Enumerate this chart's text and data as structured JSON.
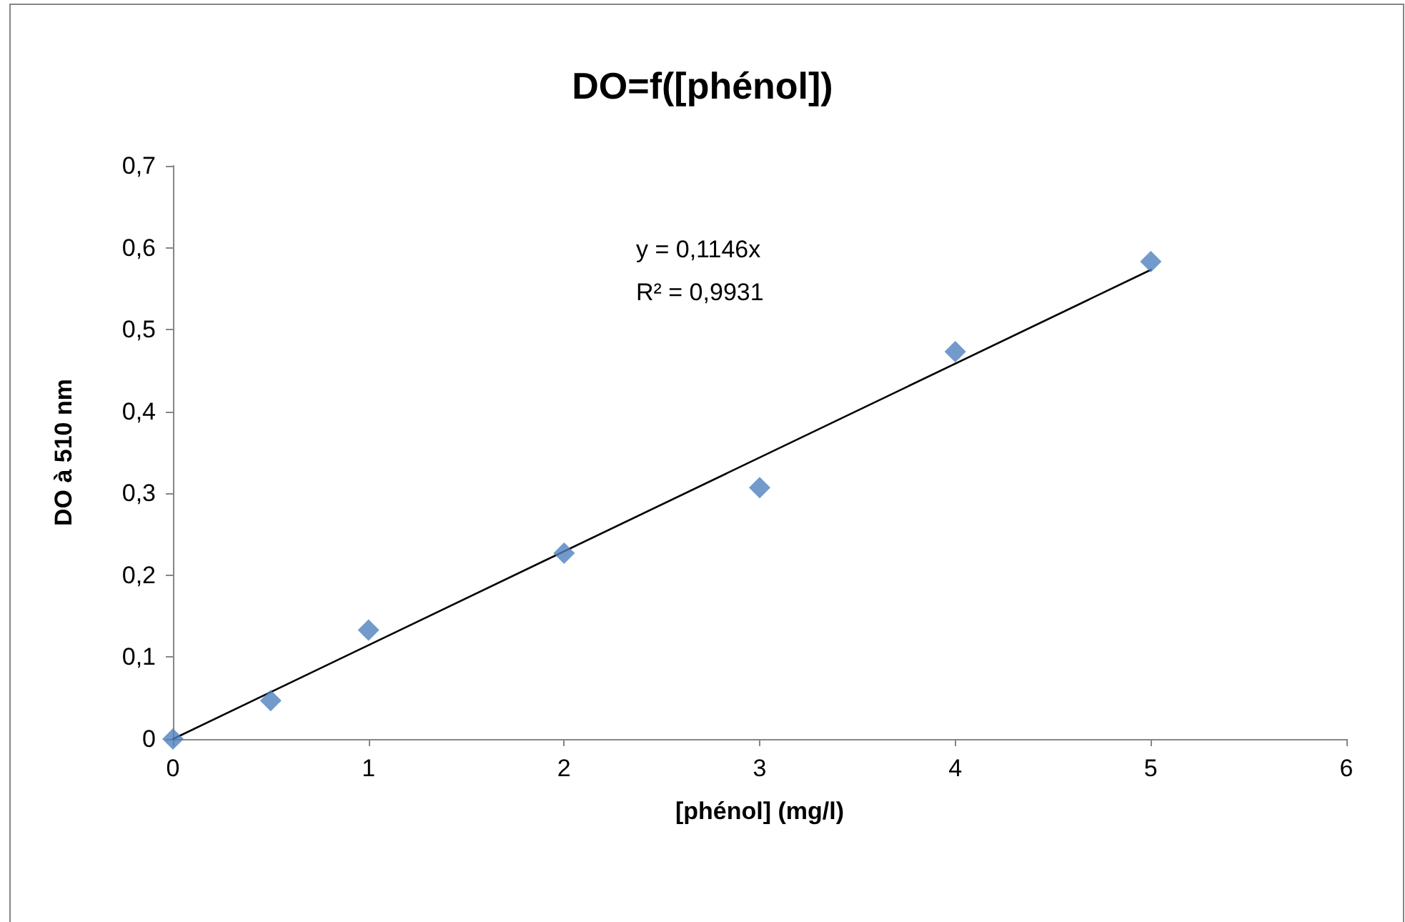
{
  "chart_data": {
    "type": "scatter",
    "title": "DO=f([phénol])",
    "xlabel": "[phénol] (mg/l)",
    "ylabel": "DO à 510 nm",
    "x": [
      0,
      0.5,
      1,
      2,
      3,
      4,
      5
    ],
    "series": [
      {
        "color": "#4f81bd",
        "marker": "diamond",
        "values": [
          0,
          0.047,
          0.133,
          0.227,
          0.307,
          0.473,
          0.583
        ]
      },
      {
        "type": "line",
        "color": "#000000",
        "marker": "none",
        "line_style": "solid",
        "x": [
          0,
          5
        ],
        "values": [
          0,
          0.573
        ]
      }
    ],
    "xlim": [
      0,
      6
    ],
    "xticks": [
      0,
      1,
      2,
      3,
      4,
      5,
      6
    ],
    "ylim": [
      0,
      0.7
    ],
    "yticks": [
      0,
      {
        "value": 0.1,
        "label": "0,1"
      },
      {
        "value": 0.2,
        "label": "0,2"
      },
      {
        "value": 0.3,
        "label": "0,3"
      },
      {
        "value": 0.4,
        "label": "0,4"
      },
      {
        "value": 0.5,
        "label": "0,5"
      },
      {
        "value": 0.6,
        "label": "0,6"
      },
      {
        "value": 0.7,
        "label": "0,7"
      }
    ],
    "grid": false,
    "annotations": [
      "y = 0,1146x",
      "R² = 0,9931"
    ]
  }
}
